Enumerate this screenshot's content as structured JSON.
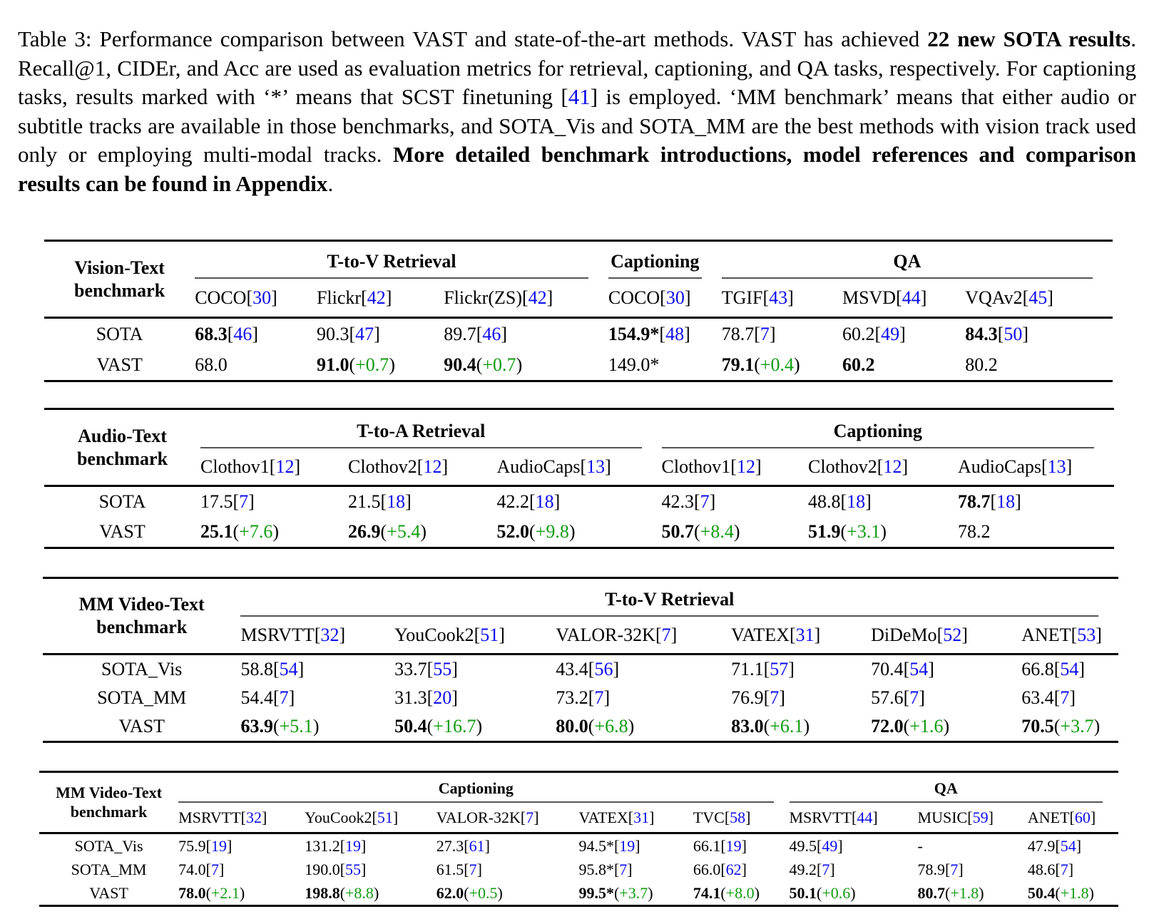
{
  "colors": {
    "citation_blue": "#0b0bee",
    "improvement_green": "#0f9b0f",
    "text_black": "#000000",
    "background": "#ffffff"
  },
  "caption": {
    "segments": [
      {
        "style": "normal",
        "text": "Table 3: Performance comparison between VAST and state-of-the-art methods. VAST has achieved "
      },
      {
        "style": "bold",
        "text": "22 new SOTA results"
      },
      {
        "style": "normal",
        "text": ".  Recall@1, CIDEr, and Acc are used as evaluation metrics for retrieval, captioning, and QA tasks, respectively.  For captioning tasks, results marked with ‘*’ means that SCST finetuning ["
      },
      {
        "style": "cite",
        "text": "41"
      },
      {
        "style": "normal",
        "text": "] is employed. ‘MM benchmark’ means that either audio or subtitle tracks are available in those benchmarks, and SOTA_Vis and SOTA_MM are the best methods with vision track used only or employing multi-modal tracks. "
      },
      {
        "style": "bold",
        "text": "More detailed benchmark introductions, model references and comparison results can be found in Appendix"
      },
      {
        "style": "normal",
        "text": "."
      }
    ]
  },
  "tables": [
    {
      "stub": [
        "Vision-Text",
        "benchmark"
      ],
      "groups": [
        {
          "label": "T-to-V Retrieval",
          "span": 3
        },
        {
          "label": "Captioning",
          "span": 1
        },
        {
          "label": "QA",
          "span": 3
        }
      ],
      "columns": [
        {
          "name": "COCO",
          "cite": "30"
        },
        {
          "name": "Flickr",
          "cite": "42"
        },
        {
          "name": "Flickr(ZS)",
          "cite": "42"
        },
        {
          "name": "COCO",
          "cite": "30"
        },
        {
          "name": "TGIF",
          "cite": "43"
        },
        {
          "name": "MSVD",
          "cite": "44"
        },
        {
          "name": "VQAv2",
          "cite": "45"
        }
      ],
      "rows": [
        {
          "label": "SOTA",
          "cells": [
            {
              "v": "68.3",
              "b": 1,
              "cite": "46"
            },
            {
              "v": "90.3",
              "cite": "47"
            },
            {
              "v": "89.7",
              "cite": "46"
            },
            {
              "v": "154.9",
              "b": 1,
              "star": 1,
              "cite": "48"
            },
            {
              "v": "78.7",
              "cite": "7"
            },
            {
              "v": "60.2",
              "cite": "49"
            },
            {
              "v": "84.3",
              "b": 1,
              "cite": "50"
            }
          ]
        },
        {
          "label": "VAST",
          "cells": [
            {
              "v": "68.0"
            },
            {
              "v": "91.0",
              "b": 1,
              "delta": "+0.7"
            },
            {
              "v": "90.4",
              "b": 1,
              "delta": "+0.7"
            },
            {
              "v": "149.0",
              "star": 1
            },
            {
              "v": "79.1",
              "b": 1,
              "delta": "+0.4"
            },
            {
              "v": "60.2",
              "b": 1
            },
            {
              "v": "80.2"
            }
          ]
        }
      ]
    },
    {
      "stub": [
        "Audio-Text",
        "benchmark"
      ],
      "groups": [
        {
          "label": "T-to-A Retrieval",
          "span": 3
        },
        {
          "label": "Captioning",
          "span": 3
        }
      ],
      "columns": [
        {
          "name": "Clothov1",
          "cite": "12"
        },
        {
          "name": "Clothov2",
          "cite": "12"
        },
        {
          "name": "AudioCaps",
          "cite": "13"
        },
        {
          "name": "Clothov1",
          "cite": "12"
        },
        {
          "name": "Clothov2",
          "cite": "12"
        },
        {
          "name": "AudioCaps",
          "cite": "13"
        }
      ],
      "rows": [
        {
          "label": "SOTA",
          "cells": [
            {
              "v": "17.5",
              "cite": "7"
            },
            {
              "v": "21.5",
              "cite": "18"
            },
            {
              "v": "42.2",
              "cite": "18"
            },
            {
              "v": "42.3",
              "cite": "7"
            },
            {
              "v": "48.8",
              "cite": "18"
            },
            {
              "v": "78.7",
              "b": 1,
              "cite": "18"
            }
          ]
        },
        {
          "label": "VAST",
          "cells": [
            {
              "v": "25.1",
              "b": 1,
              "delta": "+7.6"
            },
            {
              "v": "26.9",
              "b": 1,
              "delta": "+5.4"
            },
            {
              "v": "52.0",
              "b": 1,
              "delta": "+9.8"
            },
            {
              "v": "50.7",
              "b": 1,
              "delta": "+8.4"
            },
            {
              "v": "51.9",
              "b": 1,
              "delta": "+3.1"
            },
            {
              "v": "78.2"
            }
          ]
        }
      ]
    },
    {
      "stub": [
        "MM Video-Text",
        "benchmark"
      ],
      "groups": [
        {
          "label": "T-to-V Retrieval",
          "span": 6
        }
      ],
      "columns": [
        {
          "name": "MSRVTT",
          "cite": "32"
        },
        {
          "name": "YouCook2",
          "cite": "51"
        },
        {
          "name": "VALOR-32K",
          "cite": "7"
        },
        {
          "name": "VATEX",
          "cite": "31"
        },
        {
          "name": "DiDeMo",
          "cite": "52"
        },
        {
          "name": "ANET",
          "cite": "53"
        }
      ],
      "rows": [
        {
          "label": "SOTA_Vis",
          "cells": [
            {
              "v": "58.8",
              "cite": "54"
            },
            {
              "v": "33.7",
              "cite": "55"
            },
            {
              "v": "43.4",
              "cite": "56"
            },
            {
              "v": "71.1",
              "cite": "57"
            },
            {
              "v": "70.4",
              "cite": "54"
            },
            {
              "v": "66.8",
              "cite": "54"
            }
          ]
        },
        {
          "label": "SOTA_MM",
          "cells": [
            {
              "v": "54.4",
              "cite": "7"
            },
            {
              "v": "31.3",
              "cite": "20"
            },
            {
              "v": "73.2",
              "cite": "7"
            },
            {
              "v": "76.9",
              "cite": "7"
            },
            {
              "v": "57.6",
              "cite": "7"
            },
            {
              "v": "63.4",
              "cite": "7"
            }
          ]
        },
        {
          "label": "VAST",
          "cells": [
            {
              "v": "63.9",
              "b": 1,
              "delta": "+5.1"
            },
            {
              "v": "50.4",
              "b": 1,
              "delta": "+16.7"
            },
            {
              "v": "80.0",
              "b": 1,
              "delta": "+6.8"
            },
            {
              "v": "83.0",
              "b": 1,
              "delta": "+6.1"
            },
            {
              "v": "72.0",
              "b": 1,
              "delta": "+1.6"
            },
            {
              "v": "70.5",
              "b": 1,
              "delta": "+3.7"
            }
          ]
        }
      ]
    },
    {
      "stub": [
        "MM Video-Text",
        "benchmark"
      ],
      "groups": [
        {
          "label": "Captioning",
          "span": 5
        },
        {
          "label": "QA",
          "span": 3
        }
      ],
      "columns": [
        {
          "name": "MSRVTT",
          "cite": "32"
        },
        {
          "name": "YouCook2",
          "cite": "51"
        },
        {
          "name": "VALOR-32K",
          "cite": "7"
        },
        {
          "name": "VATEX",
          "cite": "31"
        },
        {
          "name": "TVC",
          "cite": "58"
        },
        {
          "name": "MSRVTT",
          "cite": "44"
        },
        {
          "name": "MUSIC",
          "cite": "59"
        },
        {
          "name": "ANET",
          "cite": "60"
        }
      ],
      "rows": [
        {
          "label": "SOTA_Vis",
          "cells": [
            {
              "v": "75.9",
              "cite": "19"
            },
            {
              "v": "131.2",
              "cite": "19"
            },
            {
              "v": "27.3",
              "cite": "61"
            },
            {
              "v": "94.5",
              "star": 1,
              "cite": "19"
            },
            {
              "v": "66.1",
              "cite": "19"
            },
            {
              "v": "49.5",
              "cite": "49"
            },
            {
              "v": "-"
            },
            {
              "v": "47.9",
              "cite": "54"
            }
          ]
        },
        {
          "label": "SOTA_MM",
          "cells": [
            {
              "v": "74.0",
              "cite": "7"
            },
            {
              "v": "190.0",
              "cite": "55"
            },
            {
              "v": "61.5",
              "cite": "7"
            },
            {
              "v": "95.8",
              "star": 1,
              "cite": "7"
            },
            {
              "v": "66.0",
              "cite": "62"
            },
            {
              "v": "49.2",
              "cite": "7"
            },
            {
              "v": "78.9",
              "cite": "7"
            },
            {
              "v": "48.6",
              "cite": "7"
            }
          ]
        },
        {
          "label": "VAST",
          "cells": [
            {
              "v": "78.0",
              "b": 1,
              "delta": "+2.1"
            },
            {
              "v": "198.8",
              "b": 1,
              "delta": "+8.8"
            },
            {
              "v": "62.0",
              "b": 1,
              "delta": "+0.5"
            },
            {
              "v": "99.5",
              "b": 1,
              "star": 1,
              "delta": "+3.7"
            },
            {
              "v": "74.1",
              "b": 1,
              "delta": "+8.0"
            },
            {
              "v": "50.1",
              "b": 1,
              "delta": "+0.6"
            },
            {
              "v": "80.7",
              "b": 1,
              "delta": "+1.8"
            },
            {
              "v": "50.4",
              "b": 1,
              "delta": "+1.8"
            }
          ]
        }
      ]
    }
  ]
}
